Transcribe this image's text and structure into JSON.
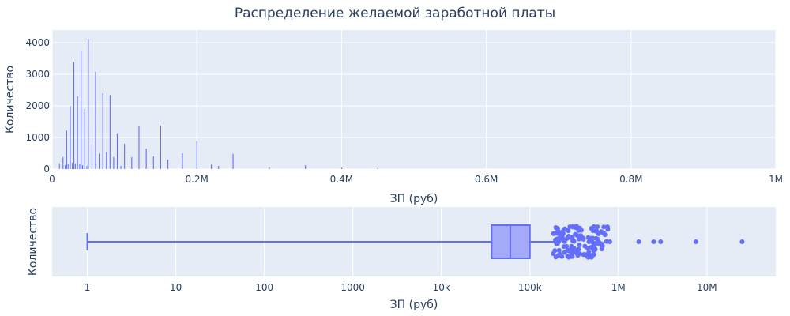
{
  "title": "Распределение желаемой заработной платы",
  "colors": {
    "plot_bg": "#E5ECF6",
    "grid": "#ffffff",
    "trace": "#636EFA",
    "box_fill": "#A4AAF8",
    "text": "#2a3f5f"
  },
  "chart_data": [
    {
      "type": "histogram",
      "xlabel": "ЗП (руб)",
      "ylabel": "Количество",
      "xlim": [
        0,
        1000000
      ],
      "ylim": [
        0,
        4400
      ],
      "x_ticks": [
        {
          "value": 0,
          "label": "0"
        },
        {
          "value": 200000,
          "label": "0.2M"
        },
        {
          "value": 400000,
          "label": "0.4M"
        },
        {
          "value": 600000,
          "label": "0.6M"
        },
        {
          "value": 800000,
          "label": "0.8M"
        },
        {
          "value": 1000000,
          "label": "1M"
        }
      ],
      "y_ticks": [
        {
          "value": 0,
          "label": "0"
        },
        {
          "value": 1000,
          "label": "1000"
        },
        {
          "value": 2000,
          "label": "2000"
        },
        {
          "value": 3000,
          "label": "3000"
        },
        {
          "value": 4000,
          "label": "4000"
        }
      ],
      "bars": [
        {
          "x": 10000,
          "y": 180
        },
        {
          "x": 15000,
          "y": 380
        },
        {
          "x": 18000,
          "y": 120
        },
        {
          "x": 20000,
          "y": 1220
        },
        {
          "x": 22000,
          "y": 150
        },
        {
          "x": 25000,
          "y": 2000
        },
        {
          "x": 28000,
          "y": 200
        },
        {
          "x": 30000,
          "y": 3380
        },
        {
          "x": 32000,
          "y": 180
        },
        {
          "x": 35000,
          "y": 2300
        },
        {
          "x": 38000,
          "y": 150
        },
        {
          "x": 40000,
          "y": 3750
        },
        {
          "x": 42000,
          "y": 120
        },
        {
          "x": 45000,
          "y": 1900
        },
        {
          "x": 48000,
          "y": 100
        },
        {
          "x": 50000,
          "y": 4120
        },
        {
          "x": 55000,
          "y": 760
        },
        {
          "x": 60000,
          "y": 3080
        },
        {
          "x": 65000,
          "y": 490
        },
        {
          "x": 70000,
          "y": 2400
        },
        {
          "x": 75000,
          "y": 540
        },
        {
          "x": 80000,
          "y": 2340
        },
        {
          "x": 85000,
          "y": 380
        },
        {
          "x": 90000,
          "y": 1130
        },
        {
          "x": 95000,
          "y": 100
        },
        {
          "x": 100000,
          "y": 800
        },
        {
          "x": 110000,
          "y": 380
        },
        {
          "x": 120000,
          "y": 1350
        },
        {
          "x": 130000,
          "y": 650
        },
        {
          "x": 140000,
          "y": 400
        },
        {
          "x": 150000,
          "y": 1370
        },
        {
          "x": 160000,
          "y": 300
        },
        {
          "x": 180000,
          "y": 500
        },
        {
          "x": 200000,
          "y": 880
        },
        {
          "x": 220000,
          "y": 140
        },
        {
          "x": 230000,
          "y": 100
        },
        {
          "x": 250000,
          "y": 480
        },
        {
          "x": 300000,
          "y": 60
        },
        {
          "x": 350000,
          "y": 120
        },
        {
          "x": 400000,
          "y": 40
        },
        {
          "x": 450000,
          "y": 20
        }
      ]
    },
    {
      "type": "box",
      "xlabel": "ЗП (руб)",
      "ylabel": "Количество",
      "x_scale": "log",
      "xlim": [
        0.4,
        60000000
      ],
      "x_ticks": [
        {
          "value": 1,
          "label": "1"
        },
        {
          "value": 10,
          "label": "10"
        },
        {
          "value": 100,
          "label": "100"
        },
        {
          "value": 1000,
          "label": "1000"
        },
        {
          "value": 10000,
          "label": "10k"
        },
        {
          "value": 100000,
          "label": "100k"
        },
        {
          "value": 1000000,
          "label": "1M"
        },
        {
          "value": 10000000,
          "label": "10M"
        }
      ],
      "min": 1,
      "q1": 37000,
      "median": 60000,
      "q3": 100000,
      "upper_fence": 190000,
      "outliers": [
        200000,
        210000,
        230000,
        250000,
        280000,
        300000,
        330000,
        360000,
        400000,
        450000,
        500000,
        550000,
        600000,
        700000,
        800000,
        1700000,
        2500000,
        3000000,
        7500000,
        25000000
      ]
    }
  ]
}
